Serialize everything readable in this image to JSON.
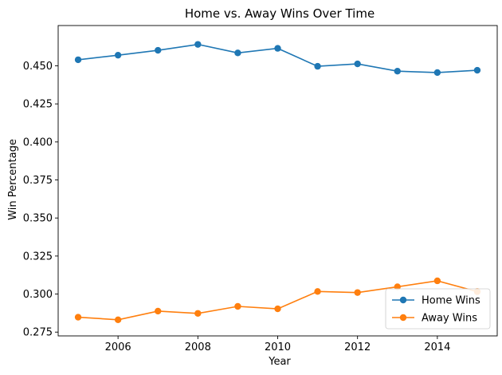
{
  "chart_data": {
    "type": "line",
    "title": "Home vs. Away Wins Over Time",
    "xlabel": "Year",
    "ylabel": "Win Percentage",
    "x": [
      2005,
      2006,
      2007,
      2008,
      2009,
      2010,
      2011,
      2012,
      2013,
      2014,
      2015
    ],
    "series": [
      {
        "name": "Home Wins",
        "color": "#1f77b4",
        "values": [
          0.454,
          0.457,
          0.4602,
          0.4641,
          0.4585,
          0.4615,
          0.4497,
          0.4513,
          0.4465,
          0.4456,
          0.4471
        ]
      },
      {
        "name": "Away Wins",
        "color": "#ff7f0e",
        "values": [
          0.2848,
          0.2831,
          0.2888,
          0.2873,
          0.2919,
          0.2903,
          0.3017,
          0.301,
          0.3048,
          0.3087,
          0.3016
        ]
      }
    ],
    "xlim": [
      2004.5,
      2015.5
    ],
    "ylim": [
      0.2725,
      0.4765
    ],
    "xticks": [
      "2006",
      "2008",
      "2010",
      "2012",
      "2014"
    ],
    "yticks": [
      "0.275",
      "0.300",
      "0.325",
      "0.350",
      "0.375",
      "0.400",
      "0.425",
      "0.450"
    ],
    "grid": false,
    "legend_position": "bottom-right"
  }
}
